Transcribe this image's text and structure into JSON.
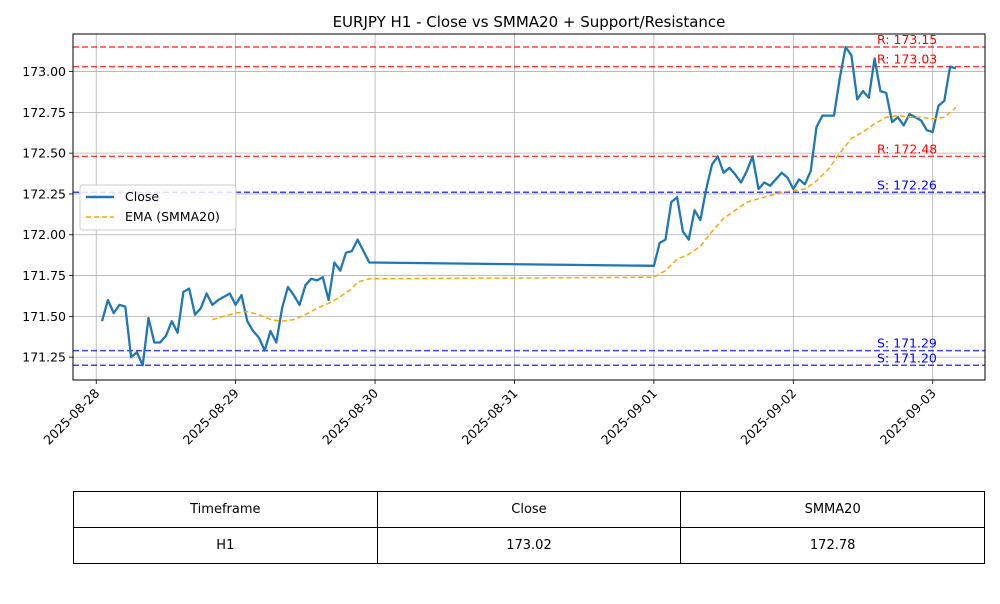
{
  "chart_data": {
    "type": "line",
    "title": "EURJPY H1 - Close vs SMMA20 + Support/Resistance",
    "xlabel": "",
    "ylabel": "",
    "xlim": [
      "2025-08-27 20:00",
      "2025-09-03 09:00"
    ],
    "ylim": [
      171.11,
      173.23
    ],
    "grid": true,
    "legend_position": "center-left",
    "x_ticks": [
      "2025-08-28",
      "2025-08-29",
      "2025-08-30",
      "2025-08-31",
      "2025-09-01",
      "2025-09-02",
      "2025-09-03"
    ],
    "y_ticks": [
      "171.25",
      "171.50",
      "171.75",
      "172.00",
      "172.25",
      "172.50",
      "172.75",
      "173.00"
    ],
    "series": [
      {
        "name": "Close",
        "color": "#1f77b4",
        "style": "solid",
        "points": [
          [
            "2025-08-28 01:00",
            171.47
          ],
          [
            "2025-08-28 02:00",
            171.6
          ],
          [
            "2025-08-28 03:00",
            171.52
          ],
          [
            "2025-08-28 04:00",
            171.57
          ],
          [
            "2025-08-28 05:00",
            171.56
          ],
          [
            "2025-08-28 06:00",
            171.25
          ],
          [
            "2025-08-28 07:00",
            171.28
          ],
          [
            "2025-08-28 08:00",
            171.2
          ],
          [
            "2025-08-28 09:00",
            171.49
          ],
          [
            "2025-08-28 10:00",
            171.34
          ],
          [
            "2025-08-28 11:00",
            171.34
          ],
          [
            "2025-08-28 12:00",
            171.38
          ],
          [
            "2025-08-28 13:00",
            171.47
          ],
          [
            "2025-08-28 14:00",
            171.4
          ],
          [
            "2025-08-28 15:00",
            171.65
          ],
          [
            "2025-08-28 16:00",
            171.67
          ],
          [
            "2025-08-28 17:00",
            171.51
          ],
          [
            "2025-08-28 18:00",
            171.55
          ],
          [
            "2025-08-28 19:00",
            171.64
          ],
          [
            "2025-08-28 20:00",
            171.57
          ],
          [
            "2025-08-28 21:00",
            171.6
          ],
          [
            "2025-08-28 22:00",
            171.62
          ],
          [
            "2025-08-28 23:00",
            171.64
          ],
          [
            "2025-08-29 00:00",
            171.57
          ],
          [
            "2025-08-29 01:00",
            171.63
          ],
          [
            "2025-08-29 02:00",
            171.47
          ],
          [
            "2025-08-29 03:00",
            171.41
          ],
          [
            "2025-08-29 04:00",
            171.37
          ],
          [
            "2025-08-29 05:00",
            171.29
          ],
          [
            "2025-08-29 06:00",
            171.41
          ],
          [
            "2025-08-29 07:00",
            171.34
          ],
          [
            "2025-08-29 08:00",
            171.55
          ],
          [
            "2025-08-29 09:00",
            171.68
          ],
          [
            "2025-08-29 10:00",
            171.63
          ],
          [
            "2025-08-29 11:00",
            171.57
          ],
          [
            "2025-08-29 12:00",
            171.69
          ],
          [
            "2025-08-29 13:00",
            171.73
          ],
          [
            "2025-08-29 14:00",
            171.72
          ],
          [
            "2025-08-29 15:00",
            171.74
          ],
          [
            "2025-08-29 16:00",
            171.6
          ],
          [
            "2025-08-29 17:00",
            171.83
          ],
          [
            "2025-08-29 18:00",
            171.78
          ],
          [
            "2025-08-29 19:00",
            171.89
          ],
          [
            "2025-08-29 20:00",
            171.9
          ],
          [
            "2025-08-29 21:00",
            171.97
          ],
          [
            "2025-08-29 23:00",
            171.83
          ],
          [
            "2025-09-01 00:00",
            171.81
          ],
          [
            "2025-09-01 01:00",
            171.95
          ],
          [
            "2025-09-01 02:00",
            171.97
          ],
          [
            "2025-09-01 03:00",
            172.2
          ],
          [
            "2025-09-01 04:00",
            172.23
          ],
          [
            "2025-09-01 05:00",
            172.02
          ],
          [
            "2025-09-01 06:00",
            171.97
          ],
          [
            "2025-09-01 07:00",
            172.15
          ],
          [
            "2025-09-01 08:00",
            172.09
          ],
          [
            "2025-09-01 09:00",
            172.28
          ],
          [
            "2025-09-01 10:00",
            172.43
          ],
          [
            "2025-09-01 11:00",
            172.48
          ],
          [
            "2025-09-01 12:00",
            172.38
          ],
          [
            "2025-09-01 13:00",
            172.41
          ],
          [
            "2025-09-01 14:00",
            172.37
          ],
          [
            "2025-09-01 15:00",
            172.32
          ],
          [
            "2025-09-01 16:00",
            172.39
          ],
          [
            "2025-09-01 17:00",
            172.48
          ],
          [
            "2025-09-01 18:00",
            172.28
          ],
          [
            "2025-09-01 19:00",
            172.32
          ],
          [
            "2025-09-01 20:00",
            172.3
          ],
          [
            "2025-09-01 21:00",
            172.34
          ],
          [
            "2025-09-01 22:00",
            172.38
          ],
          [
            "2025-09-01 23:00",
            172.35
          ],
          [
            "2025-09-02 00:00",
            172.28
          ],
          [
            "2025-09-02 01:00",
            172.34
          ],
          [
            "2025-09-02 02:00",
            172.31
          ],
          [
            "2025-09-02 03:00",
            172.39
          ],
          [
            "2025-09-02 04:00",
            172.66
          ],
          [
            "2025-09-02 05:00",
            172.73
          ],
          [
            "2025-09-02 06:00",
            172.73
          ],
          [
            "2025-09-02 07:00",
            172.73
          ],
          [
            "2025-09-02 08:00",
            172.96
          ],
          [
            "2025-09-02 09:00",
            173.15
          ],
          [
            "2025-09-02 10:00",
            173.1
          ],
          [
            "2025-09-02 11:00",
            172.83
          ],
          [
            "2025-09-02 12:00",
            172.88
          ],
          [
            "2025-09-02 13:00",
            172.84
          ],
          [
            "2025-09-02 14:00",
            173.08
          ],
          [
            "2025-09-02 15:00",
            172.88
          ],
          [
            "2025-09-02 16:00",
            172.87
          ],
          [
            "2025-09-02 17:00",
            172.69
          ],
          [
            "2025-09-02 18:00",
            172.72
          ],
          [
            "2025-09-02 19:00",
            172.67
          ],
          [
            "2025-09-02 20:00",
            172.74
          ],
          [
            "2025-09-02 21:00",
            172.72
          ],
          [
            "2025-09-02 22:00",
            172.7
          ],
          [
            "2025-09-02 23:00",
            172.64
          ],
          [
            "2025-09-03 00:00",
            172.63
          ],
          [
            "2025-09-03 01:00",
            172.79
          ],
          [
            "2025-09-03 02:00",
            172.82
          ],
          [
            "2025-09-03 03:00",
            173.03
          ],
          [
            "2025-09-03 04:00",
            173.02
          ]
        ]
      },
      {
        "name": "EMA (SMMA20)",
        "color": "#ffa500",
        "style": "dashed",
        "points": [
          [
            "2025-08-28 20:00",
            171.48
          ],
          [
            "2025-08-28 22:00",
            171.5
          ],
          [
            "2025-08-29 00:00",
            171.52
          ],
          [
            "2025-08-29 02:00",
            171.53
          ],
          [
            "2025-08-29 04:00",
            171.51
          ],
          [
            "2025-08-29 06:00",
            171.48
          ],
          [
            "2025-08-29 08:00",
            171.47
          ],
          [
            "2025-08-29 10:00",
            171.48
          ],
          [
            "2025-08-29 12:00",
            171.51
          ],
          [
            "2025-08-29 14:00",
            171.55
          ],
          [
            "2025-08-29 16:00",
            171.58
          ],
          [
            "2025-08-29 18:00",
            171.62
          ],
          [
            "2025-08-29 20:00",
            171.67
          ],
          [
            "2025-08-29 21:00",
            171.71
          ],
          [
            "2025-08-29 23:00",
            171.73
          ],
          [
            "2025-09-01 00:00",
            171.74
          ],
          [
            "2025-09-01 02:00",
            171.78
          ],
          [
            "2025-09-01 04:00",
            171.85
          ],
          [
            "2025-09-01 06:00",
            171.88
          ],
          [
            "2025-09-01 08:00",
            171.93
          ],
          [
            "2025-09-01 10:00",
            172.02
          ],
          [
            "2025-09-01 12:00",
            172.1
          ],
          [
            "2025-09-01 14:00",
            172.15
          ],
          [
            "2025-09-01 16:00",
            172.2
          ],
          [
            "2025-09-01 18:00",
            172.22
          ],
          [
            "2025-09-01 20:00",
            172.24
          ],
          [
            "2025-09-01 22:00",
            172.26
          ],
          [
            "2025-09-02 00:00",
            172.27
          ],
          [
            "2025-09-02 02:00",
            172.28
          ],
          [
            "2025-09-02 04:00",
            172.33
          ],
          [
            "2025-09-02 06:00",
            172.4
          ],
          [
            "2025-09-02 08:00",
            172.5
          ],
          [
            "2025-09-02 10:00",
            172.59
          ],
          [
            "2025-09-02 12:00",
            172.63
          ],
          [
            "2025-09-02 14:00",
            172.68
          ],
          [
            "2025-09-02 16:00",
            172.72
          ],
          [
            "2025-09-02 18:00",
            172.73
          ],
          [
            "2025-09-02 20:00",
            172.72
          ],
          [
            "2025-09-02 22:00",
            172.72
          ],
          [
            "2025-09-03 00:00",
            172.71
          ],
          [
            "2025-09-03 02:00",
            172.72
          ],
          [
            "2025-09-03 04:00",
            172.78
          ]
        ]
      }
    ],
    "levels": [
      {
        "kind": "resistance",
        "value": 173.15,
        "label": "R: 173.15",
        "color": "#ff0000"
      },
      {
        "kind": "resistance",
        "value": 173.03,
        "label": "R: 173.03",
        "color": "#ff0000"
      },
      {
        "kind": "resistance",
        "value": 172.48,
        "label": "R: 172.48",
        "color": "#ff0000"
      },
      {
        "kind": "support",
        "value": 172.26,
        "label": "S: 172.26",
        "color": "#0000ff"
      },
      {
        "kind": "support",
        "value": 171.29,
        "label": "S: 171.29",
        "color": "#0000ff"
      },
      {
        "kind": "support",
        "value": 171.2,
        "label": "S: 171.20",
        "color": "#0000ff"
      }
    ]
  },
  "table": {
    "headers": [
      "Timeframe",
      "Close",
      "SMMA20"
    ],
    "row": [
      "H1",
      "173.02",
      "172.78"
    ]
  }
}
